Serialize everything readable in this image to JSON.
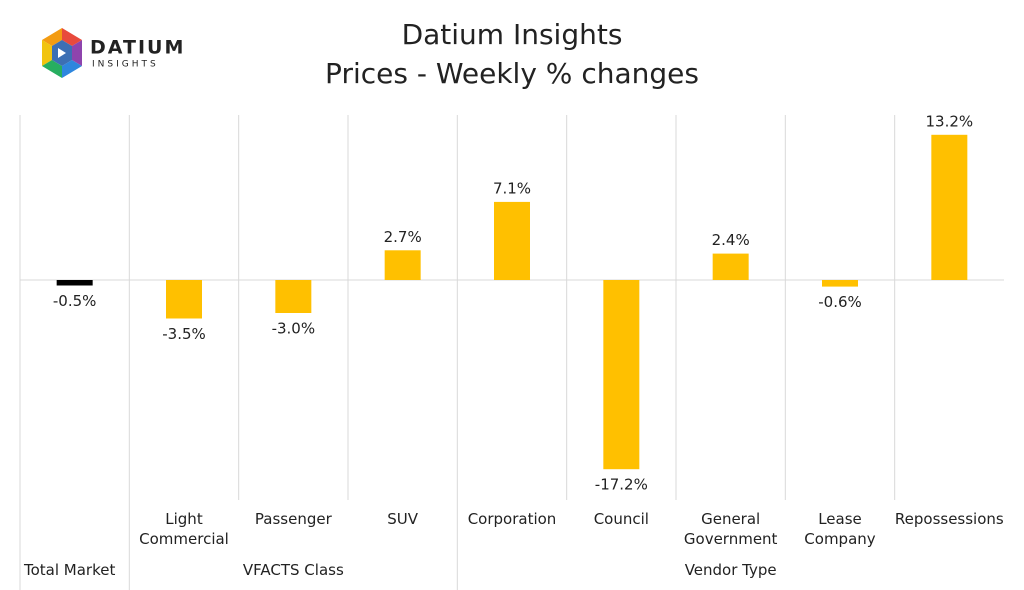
{
  "logo": {
    "name": "DATIUM",
    "tagline": "INSIGHTS"
  },
  "chart_data": {
    "type": "bar",
    "title": "Datium Insights",
    "subtitle": "Prices - Weekly % changes",
    "categories": [
      null,
      "Light Commercial",
      "Passenger",
      "SUV",
      "Corporation",
      "Council",
      "General Government",
      "Lease Company",
      "Repossessions"
    ],
    "groups": [
      {
        "label": "Total Market",
        "span": 1
      },
      {
        "label": "VFACTS Class",
        "span": 3
      },
      {
        "label": "Vendor Type",
        "span": 5
      }
    ],
    "values": [
      -0.5,
      -3.5,
      -3.0,
      2.7,
      7.1,
      -17.2,
      2.4,
      -0.6,
      13.2
    ],
    "value_labels": [
      "-0.5%",
      "-3.5%",
      "-3.0%",
      "2.7%",
      "7.1%",
      "-17.2%",
      "2.4%",
      "-0.6%",
      "13.2%"
    ],
    "colors": [
      "#000000",
      "#ffc000",
      "#ffc000",
      "#ffc000",
      "#ffc000",
      "#ffc000",
      "#ffc000",
      "#ffc000",
      "#ffc000"
    ],
    "ylim": [
      -20,
      15
    ],
    "grid": false
  }
}
